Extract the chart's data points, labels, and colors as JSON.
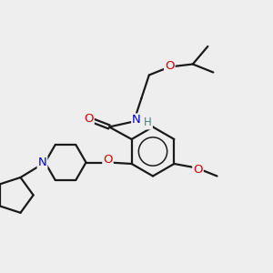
{
  "background_color": "#eeeeee",
  "atom_colors": {
    "C": "#1a1a1a",
    "N": "#0000cc",
    "O": "#cc0000",
    "H": "#4a8080"
  },
  "bond_lw": 1.6,
  "figsize": [
    3.0,
    3.0
  ],
  "dpi": 100,
  "xlim": [
    0,
    10
  ],
  "ylim": [
    0,
    10
  ]
}
